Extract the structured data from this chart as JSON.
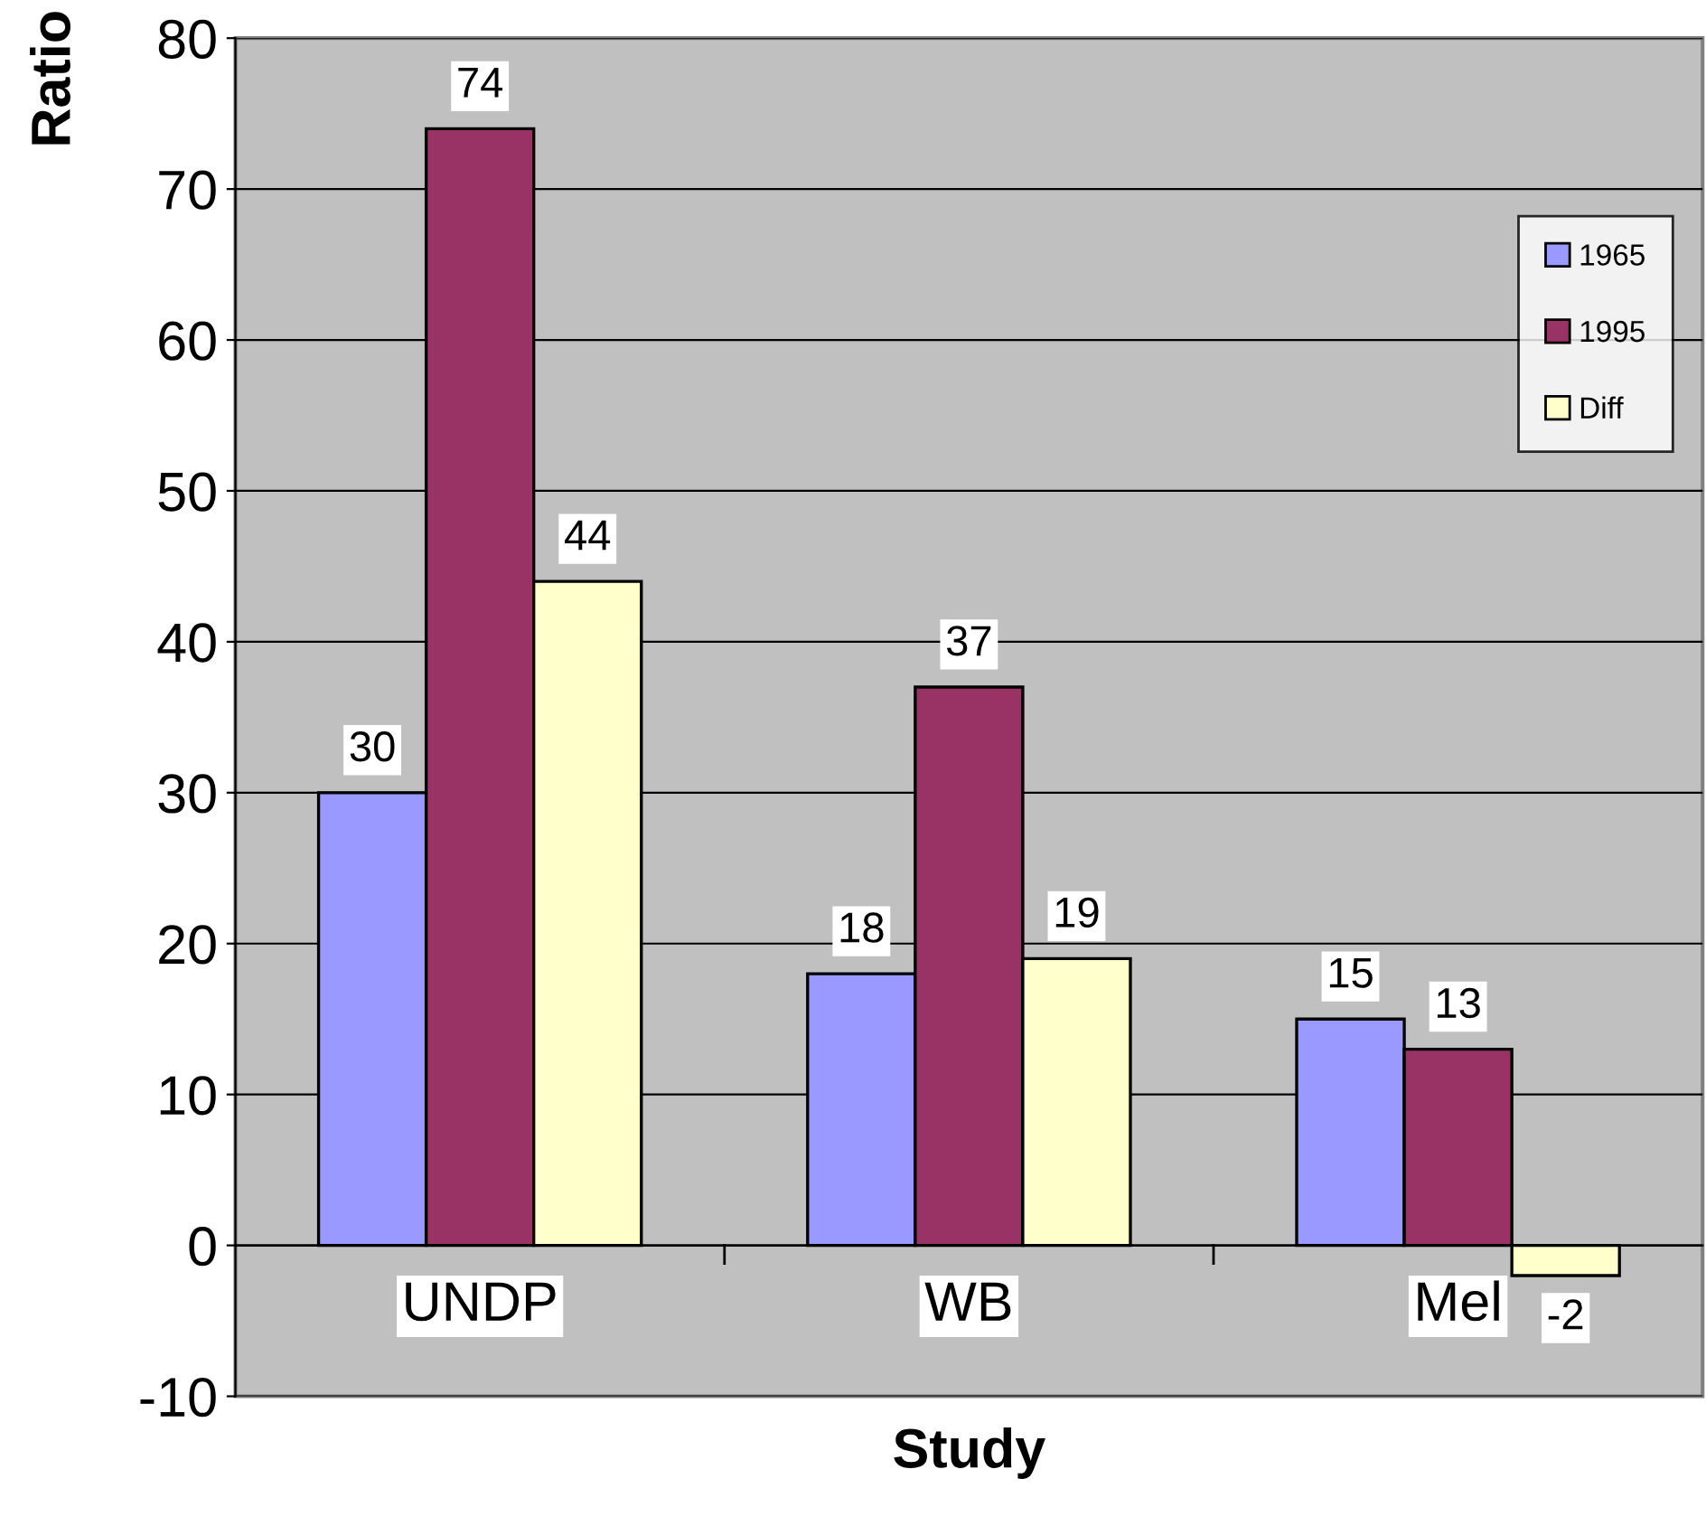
{
  "chart_data": {
    "type": "bar",
    "xlabel": "Study",
    "ylabel": "Ratio",
    "categories": [
      "UNDP",
      "WB",
      "Mel"
    ],
    "series": [
      {
        "name": "1965",
        "color": "#9999ff",
        "values": [
          30,
          18,
          15
        ]
      },
      {
        "name": "1995",
        "color": "#993366",
        "values": [
          74,
          37,
          13
        ]
      },
      {
        "name": "Diff",
        "color": "#ffffcc",
        "values": [
          44,
          19,
          -2
        ]
      }
    ],
    "ylim": [
      -10,
      80
    ],
    "yticks": [
      -10,
      0,
      10,
      20,
      30,
      40,
      50,
      60,
      70,
      80
    ],
    "grid": "y",
    "legend": "top right",
    "data_labels": true
  }
}
